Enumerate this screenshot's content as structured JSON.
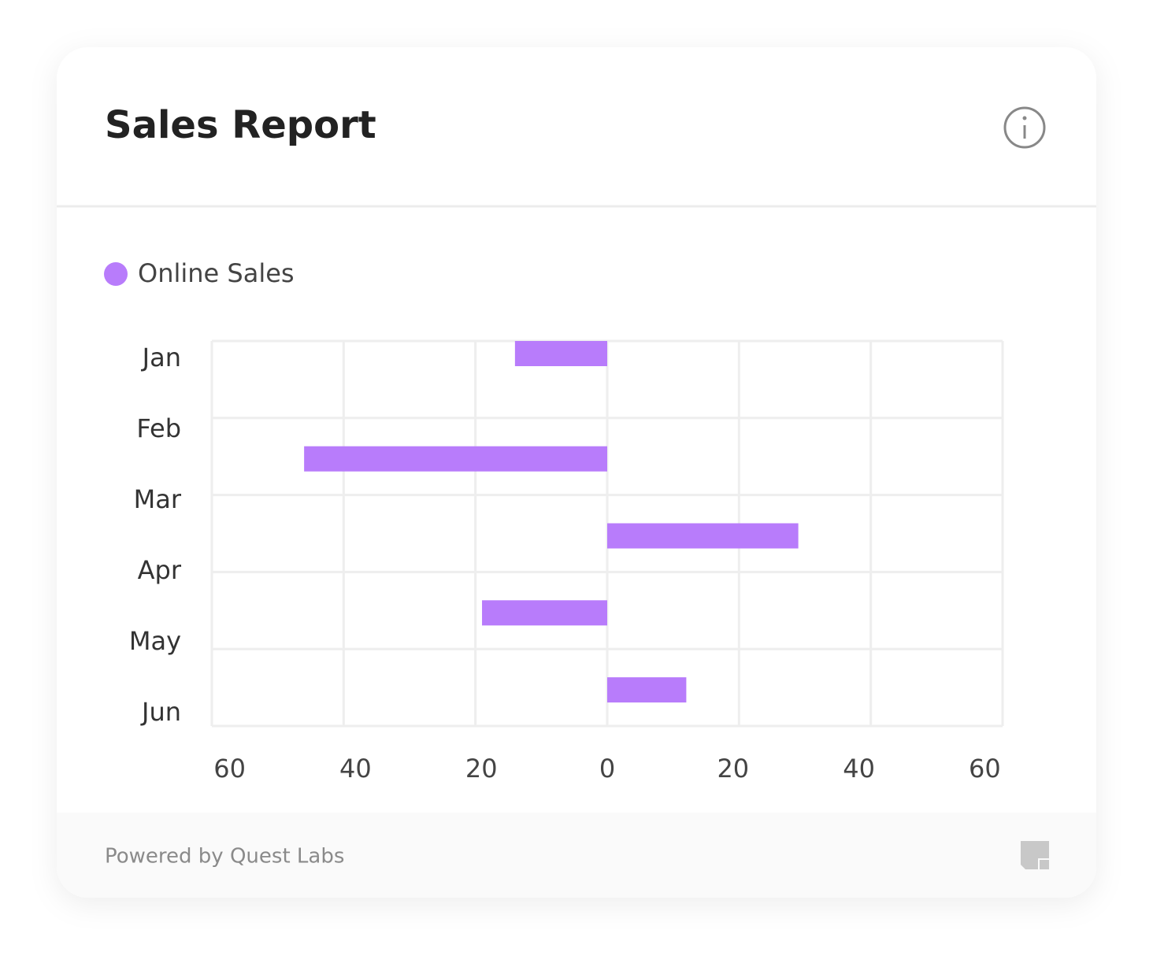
{
  "header": {
    "title": "Sales Report"
  },
  "chart_data": {
    "type": "bar",
    "orientation": "horizontal",
    "categories": [
      "Jan",
      "Feb",
      "Mar",
      "Apr",
      "May",
      "Jun"
    ],
    "series": [
      {
        "name": "Online Sales",
        "color": "#b87cfb",
        "values": [
          -14,
          -46,
          29,
          -19,
          12,
          null
        ]
      }
    ],
    "xlim": [
      -60,
      60
    ],
    "xticks": [
      {
        "value": -60,
        "label": "60"
      },
      {
        "value": -40,
        "label": "40"
      },
      {
        "value": -20,
        "label": "20"
      },
      0,
      20,
      40,
      60
    ],
    "grid": true,
    "legend": "top-left"
  },
  "footer": {
    "text": "Powered by Quest Labs"
  }
}
